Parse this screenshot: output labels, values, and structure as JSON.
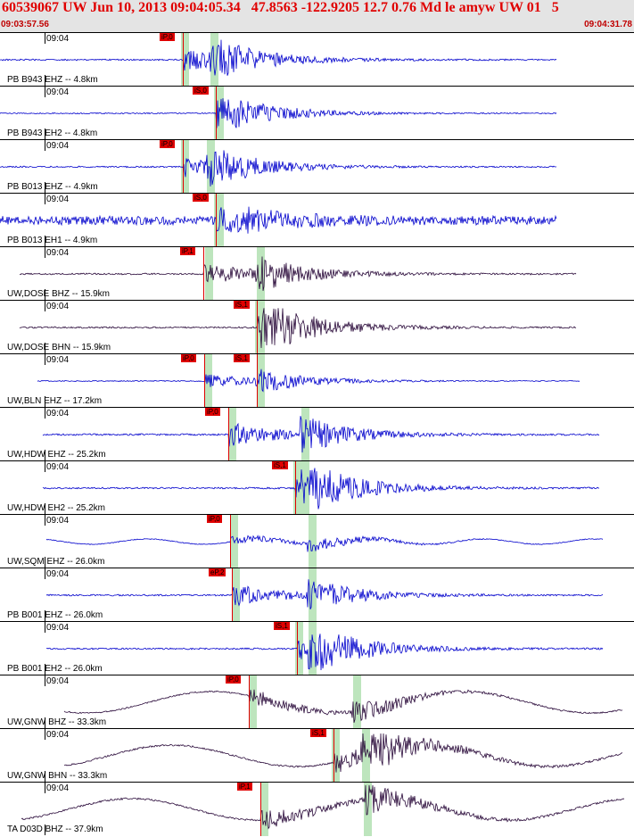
{
  "header": {
    "title": "60539067 UW Jun 10, 2013 09:04:05.34   47.8563 -122.9205 12.7 0.76 Md le amyw UW 01   5",
    "start_time": "09:03:57.56",
    "end_time": "09:04:31.78"
  },
  "colors": {
    "trace_blue": "#0000cc",
    "trace_dark": "#2a0a3a",
    "pick": "#e00000",
    "band": "#bde5bd"
  },
  "channels": [
    {
      "label": "PB B943 EHZ -- 4.8km",
      "time": "09:04",
      "pick": "iP,0",
      "style": "blue"
    },
    {
      "label": "PB B943 EH2 -- 4.8km",
      "time": "09:04",
      "pick": "iS,0",
      "style": "blue"
    },
    {
      "label": "PB B013 EHZ -- 4.9km",
      "time": "09:04",
      "pick": "iP,0",
      "style": "blue"
    },
    {
      "label": "PB B013 EH1 -- 4.9km",
      "time": "09:04",
      "pick": "iS,0",
      "style": "blue"
    },
    {
      "label": "UW,DOSE BHZ -- 15.9km",
      "time": "09:04",
      "pick": "iP,1",
      "style": "dark"
    },
    {
      "label": "UW,DOSE BHN -- 15.9km",
      "time": "09:04",
      "pick": "iS,1",
      "style": "dark"
    },
    {
      "label": "UW,BLN EHZ -- 17.2km",
      "time": "09:04",
      "pick": "iP,0",
      "pick2": "iS,1",
      "style": "blue"
    },
    {
      "label": "UW,HDW EHZ -- 25.2km",
      "time": "09:04",
      "pick": "iP,0",
      "style": "blue"
    },
    {
      "label": "UW,HDW EH2 -- 25.2km",
      "time": "09:04",
      "pick": "iS,1",
      "style": "blue"
    },
    {
      "label": "UW,SQM EHZ -- 26.0km",
      "time": "09:04",
      "pick": "iP,0",
      "style": "blue"
    },
    {
      "label": "PB B001 EHZ -- 26.0km",
      "time": "09:04",
      "pick": "eP,2",
      "style": "blue"
    },
    {
      "label": "PB B001 EH2 -- 26.0km",
      "time": "09:04",
      "pick": "iS,1",
      "style": "blue"
    },
    {
      "label": "UW,GNW BHZ -- 33.3km",
      "time": "09:04",
      "pick": "iP,0",
      "style": "dark"
    },
    {
      "label": "UW,GNW BHN -- 33.3km",
      "time": "09:04",
      "pick": "iS,1",
      "style": "dark"
    },
    {
      "label": "TA D03D BHZ -- 37.9km",
      "time": "09:04",
      "pick": "iP,1",
      "style": "dark"
    }
  ]
}
